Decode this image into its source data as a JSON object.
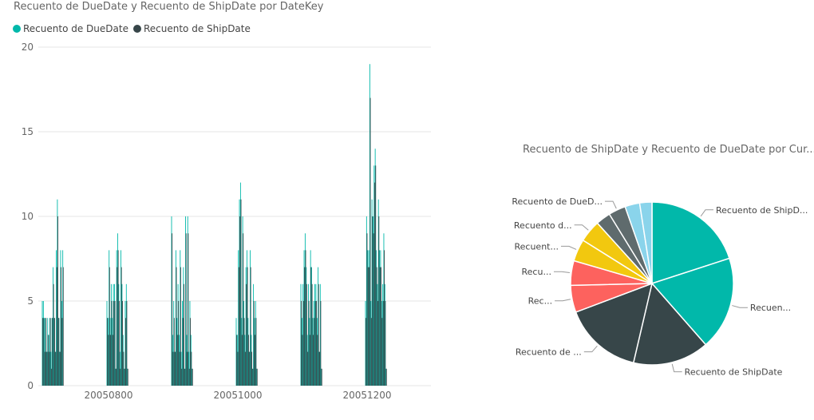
{
  "colors": {
    "due": "#01B8AA",
    "ship": "#374649",
    "grid": "#e6e6e6"
  },
  "bar_chart": {
    "title": "Recuento de DueDate y Recuento de ShipDate por DateKey",
    "legend": [
      "Recuento de DueDate",
      "Recuento de ShipDate"
    ]
  },
  "pie_chart": {
    "title": "Recuento de ShipDate y Recuento de DueDate por Cur..."
  },
  "chart_data": [
    {
      "type": "bar",
      "title": "Recuento de DueDate y Recuento de ShipDate por DateKey",
      "xlabel": "",
      "ylabel": "",
      "ylim": [
        0,
        20
      ],
      "yticks": [
        0,
        5,
        10,
        15,
        20
      ],
      "xticks": [
        "20050800",
        "20051000",
        "20051200"
      ],
      "grid": true,
      "legend_position": "top-left",
      "groups": [
        {
          "name": "g1",
          "due": [
            5,
            5,
            4,
            4,
            2,
            4,
            3,
            4,
            2,
            4,
            7,
            4,
            2,
            8,
            11,
            4,
            2,
            8,
            5,
            8
          ],
          "ship": [
            4,
            4,
            2,
            4,
            2,
            3,
            2,
            4,
            1,
            4,
            6,
            4,
            2,
            7,
            10,
            4,
            2,
            7,
            4,
            7
          ]
        },
        {
          "name": "g2",
          "due": [
            5,
            4,
            8,
            4,
            6,
            4,
            6,
            6,
            1,
            8,
            9,
            6,
            2,
            8,
            6,
            3,
            1,
            5,
            6,
            1
          ],
          "ship": [
            4,
            3,
            7,
            3,
            5,
            3,
            5,
            5,
            1,
            7,
            8,
            5,
            1,
            7,
            5,
            2,
            1,
            4,
            5,
            1
          ]
        },
        {
          "name": "g3",
          "due": [
            10,
            3,
            5,
            2,
            8,
            4,
            6,
            3,
            8,
            2,
            5,
            7,
            1,
            10,
            3,
            10,
            2,
            5,
            3,
            1
          ],
          "ship": [
            9,
            2,
            4,
            2,
            7,
            3,
            5,
            2,
            7,
            1,
            4,
            6,
            1,
            9,
            2,
            9,
            1,
            4,
            2,
            1
          ]
        },
        {
          "name": "g4",
          "due": [
            4,
            3,
            8,
            11,
            12,
            4,
            10,
            5,
            3,
            7,
            8,
            4,
            2,
            8,
            3,
            1,
            6,
            4,
            5,
            1
          ],
          "ship": [
            3,
            2,
            7,
            10,
            11,
            3,
            9,
            4,
            2,
            6,
            7,
            3,
            2,
            7,
            2,
            1,
            5,
            3,
            4,
            1
          ]
        },
        {
          "name": "g5",
          "due": [
            6,
            4,
            6,
            8,
            9,
            7,
            3,
            6,
            4,
            8,
            7,
            4,
            5,
            6,
            6,
            4,
            7,
            2,
            6,
            1
          ],
          "ship": [
            5,
            3,
            5,
            7,
            8,
            6,
            2,
            5,
            3,
            7,
            6,
            3,
            4,
            5,
            5,
            3,
            6,
            2,
            5,
            1
          ]
        },
        {
          "name": "g6",
          "due": [
            5,
            10,
            8,
            8,
            19,
            5,
            11,
            10,
            13,
            14,
            8,
            6,
            11,
            8,
            8,
            5,
            6,
            9,
            6,
            1
          ],
          "ship": [
            4,
            9,
            7,
            7,
            17,
            4,
            10,
            9,
            12,
            13,
            7,
            5,
            10,
            7,
            7,
            4,
            5,
            8,
            5,
            1
          ]
        }
      ]
    },
    {
      "type": "pie",
      "title": "Recuento de ShipDate y Recuento de DueDate por Cur...",
      "slices": [
        {
          "label": "Recuento de ShipD...",
          "value": 20.5,
          "color": "#01B8AA"
        },
        {
          "label": "Recuen...",
          "value": 19,
          "color": "#01B8AA"
        },
        {
          "label": "Recuento de ShipDate",
          "value": 15.5,
          "color": "#374649"
        },
        {
          "label": "Recuento de ...",
          "value": 16,
          "color": "#374649"
        },
        {
          "label": "Rec...",
          "value": 5.5,
          "color": "#FD625E"
        },
        {
          "label": "Recu...",
          "value": 5,
          "color": "#FD625E"
        },
        {
          "label": "Recuent...",
          "value": 4.5,
          "color": "#F2C80F"
        },
        {
          "label": "Recuento d...",
          "value": 4.5,
          "color": "#F2C80F"
        },
        {
          "label": "",
          "value": 3,
          "color": "#5F6B6D"
        },
        {
          "label": "Recuento de DueD...",
          "value": 3.5,
          "color": "#5F6B6D"
        },
        {
          "label": "",
          "value": 3,
          "color": "#8AD4EB"
        },
        {
          "label": "",
          "value": 2.5,
          "color": "#8AD4EB"
        }
      ]
    }
  ]
}
